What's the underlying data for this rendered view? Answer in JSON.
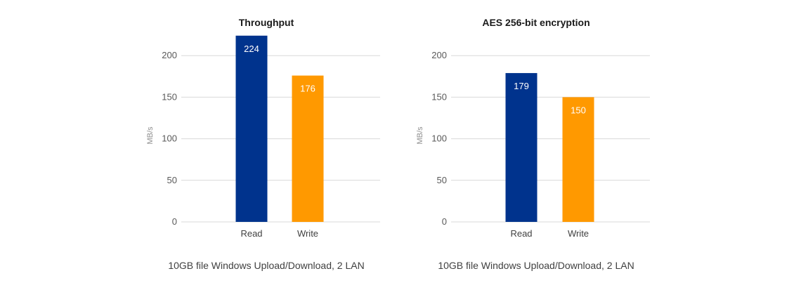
{
  "chart_data": [
    {
      "type": "bar",
      "title": "Throughput",
      "ylabel": "MB/s",
      "xlabel": "",
      "categories": [
        "Read",
        "Write"
      ],
      "values": [
        224,
        176
      ],
      "bar_colors": [
        "#00338d",
        "#ff9900"
      ],
      "data_labels": [
        "224",
        "176"
      ],
      "yticks": [
        0,
        50,
        100,
        150,
        200
      ],
      "ylim": [
        0,
        200
      ],
      "grid": true,
      "footnote": "10GB file Windows Upload/Download, 2 LAN"
    },
    {
      "type": "bar",
      "title": "AES 256-bit encryption",
      "ylabel": "MB/s",
      "xlabel": "",
      "categories": [
        "Read",
        "Write"
      ],
      "values": [
        179,
        150
      ],
      "bar_colors": [
        "#00338d",
        "#ff9900"
      ],
      "data_labels": [
        "179",
        "150"
      ],
      "yticks": [
        0,
        50,
        100,
        150,
        200
      ],
      "ylim": [
        0,
        200
      ],
      "grid": true,
      "footnote": "10GB file Windows Upload/Download, 2 LAN"
    }
  ]
}
